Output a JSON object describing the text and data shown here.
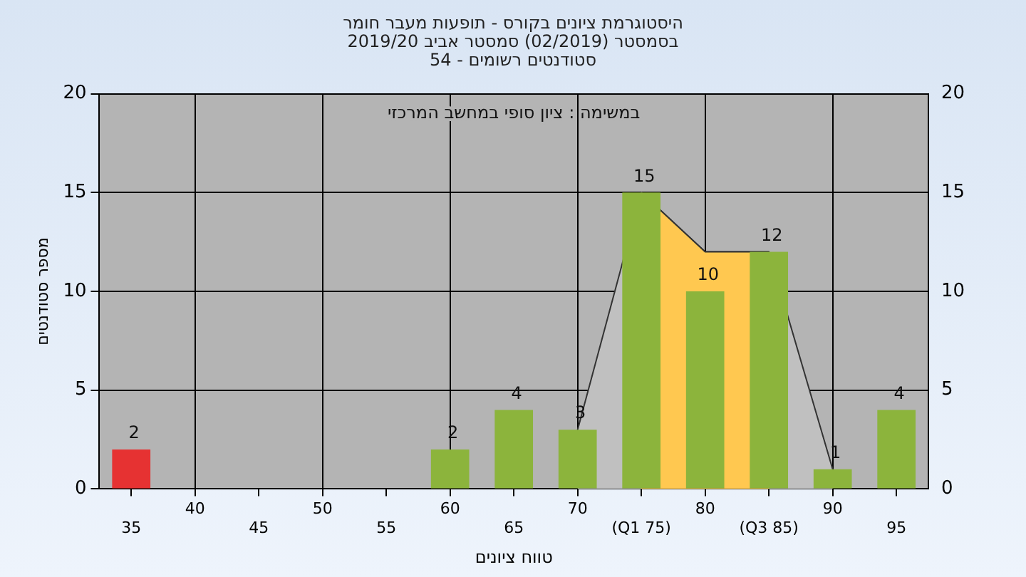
{
  "chart_data": {
    "type": "bar",
    "title": "היסטוגרמת ציונים בקורס - תופעות מעבר חומר",
    "subtitle": "בסמסטר  (02/2019)  סמסטר אביב 2019/20\nסטודנטים רשומים - 54",
    "xlabel": "טווח ציונים",
    "ylabel": "מספר סטודנטים",
    "annotations": [
      "במשימה : ציון סופי במחשב המרכזי"
    ],
    "categories": [
      "35",
      "40",
      "45",
      "50",
      "55",
      "60",
      "65",
      "70",
      "(Q1 75)",
      "80",
      "(Q3 85)",
      "90",
      "95"
    ],
    "series": [
      {
        "type": "area",
        "color": "#c0c0c0",
        "values": [
          null,
          null,
          null,
          null,
          null,
          null,
          null,
          3,
          15,
          12,
          12,
          1,
          null
        ]
      },
      {
        "type": "area",
        "color": "#ffc850",
        "values": [
          null,
          null,
          null,
          null,
          null,
          null,
          null,
          null,
          15,
          12,
          12,
          null,
          null
        ]
      },
      {
        "colors": [
          "#e63232",
          "#8cb43c",
          "#8cb43c",
          "#8cb43c",
          "#8cb43c",
          "#8cb43c",
          "#8cb43c",
          "#8cb43c",
          "#8cb43c",
          "#8cb43c",
          "#8cb43c",
          "#8cb43c",
          "#8cb43c"
        ],
        "values": [
          2,
          null,
          null,
          null,
          null,
          2,
          4,
          3,
          15,
          10,
          12,
          1,
          4
        ],
        "value_labels": [
          "2",
          null,
          null,
          null,
          null,
          "2",
          "4",
          "3",
          "15",
          "10",
          "12",
          "1",
          "4"
        ]
      }
    ],
    "ylim": [
      0,
      20
    ],
    "yticks": [
      0,
      5,
      10,
      15,
      20
    ],
    "y2lim": [
      0,
      20
    ],
    "y2ticks": [
      0,
      5,
      10,
      15,
      20
    ],
    "grid": true,
    "legend": false
  }
}
